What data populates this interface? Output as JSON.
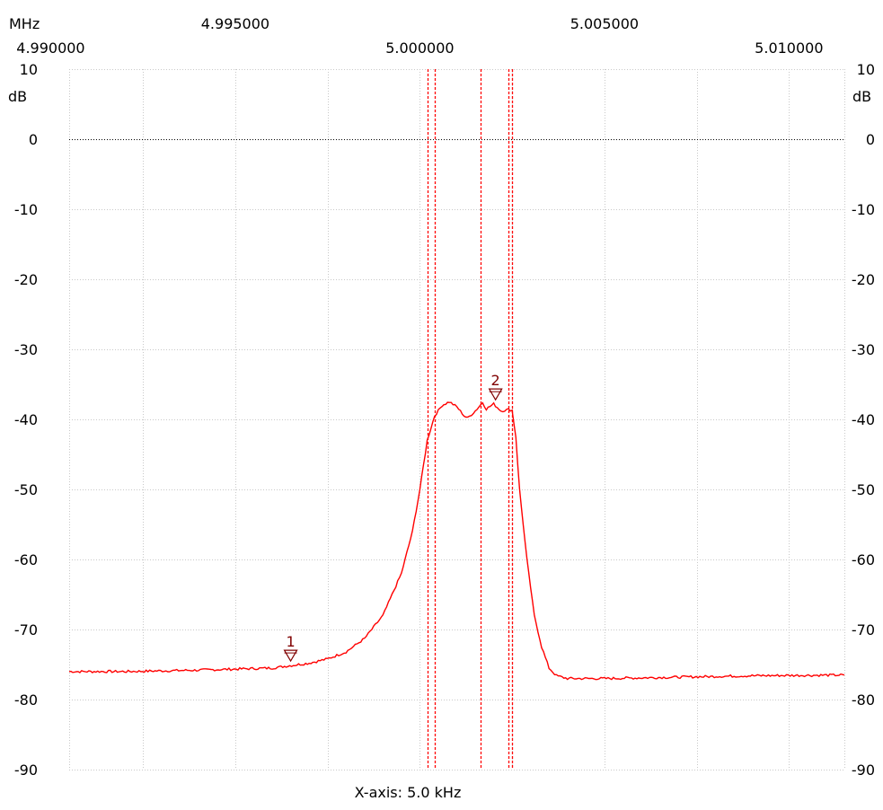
{
  "chart_data": {
    "type": "line",
    "x_unit": "MHz",
    "y_unit": "dB",
    "xlim": [
      4.9905,
      5.0115
    ],
    "ylim": [
      -90,
      10
    ],
    "x_ticks_top": [
      "4.995000",
      "5.005000"
    ],
    "x_ticks_bottom": [
      "4.990000",
      "5.000000",
      "5.010000"
    ],
    "x_tick_values_top": [
      4.995,
      5.005
    ],
    "x_tick_values_bottom": [
      4.99,
      5.0,
      5.01
    ],
    "y_ticks": [
      "10",
      "0",
      "-10",
      "-20",
      "-30",
      "-40",
      "-50",
      "-60",
      "-70",
      "-80",
      "-90"
    ],
    "y_tick_values": [
      10,
      0,
      -10,
      -20,
      -30,
      -40,
      -50,
      -60,
      -70,
      -80,
      -90
    ],
    "grid": true,
    "reference_line_y": 0,
    "xlabel": "X-axis: 5.0 kHz",
    "series": [
      {
        "color": "#ff0000",
        "x": [
          4.9905,
          4.992,
          4.994,
          4.996,
          4.997,
          4.9975,
          4.998,
          4.9985,
          4.999,
          4.9995,
          4.9998,
          5.0,
          5.0002,
          5.0004,
          5.0006,
          5.0008,
          5.001,
          5.0012,
          5.0013,
          5.0015,
          5.0017,
          5.0018,
          5.002,
          5.0022,
          5.0024,
          5.0025,
          5.0026,
          5.0027,
          5.0029,
          5.0031,
          5.0033,
          5.0035,
          5.0037,
          5.004,
          5.005,
          5.007,
          5.009,
          5.0115
        ],
        "values": [
          -76.0,
          -76.0,
          -75.8,
          -75.5,
          -74.8,
          -74.2,
          -73.2,
          -71.3,
          -68.0,
          -62.0,
          -56.0,
          -50.0,
          -43.0,
          -39.5,
          -38.0,
          -37.5,
          -38.2,
          -39.5,
          -39.8,
          -38.8,
          -37.6,
          -38.5,
          -37.8,
          -38.8,
          -38.6,
          -38.7,
          -42.5,
          -50.0,
          -60.0,
          -68.0,
          -72.5,
          -75.5,
          -76.6,
          -77.0,
          -77.0,
          -76.8,
          -76.6,
          -76.5
        ]
      }
    ],
    "markers": [
      {
        "label": "1",
        "x": 4.9965,
        "y": -74.5
      },
      {
        "label": "2",
        "x": 5.00205,
        "y": -37.2
      }
    ],
    "vertical_lines": [
      5.0002,
      5.0004,
      5.00165,
      5.0024,
      5.0025
    ],
    "vertical_line_color": "#ff0000",
    "axis_labels_right": true
  }
}
